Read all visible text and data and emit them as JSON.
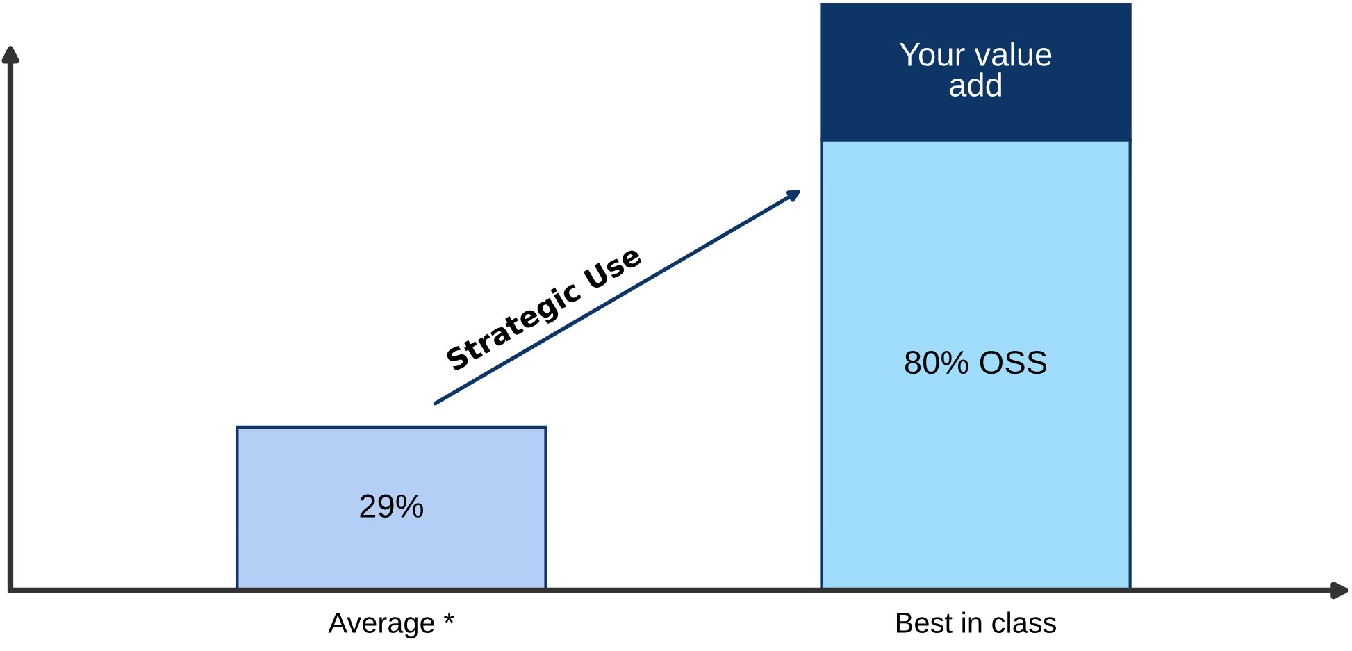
{
  "chart_data": {
    "type": "bar",
    "stacked": true,
    "categories": [
      "Average *",
      "Best in class"
    ],
    "series": [
      {
        "colors": [
          "#b4cff5",
          "#a0dcfc"
        ],
        "values": [
          29,
          80
        ],
        "value_labels": [
          "29%",
          "80% OSS"
        ]
      },
      {
        "name": "Your value add",
        "color": "#0d3566",
        "values": [
          null,
          24
        ]
      }
    ],
    "annotations": [
      "Strategic Use"
    ],
    "tick_labels": "x",
    "legend": false,
    "grid": false
  }
}
